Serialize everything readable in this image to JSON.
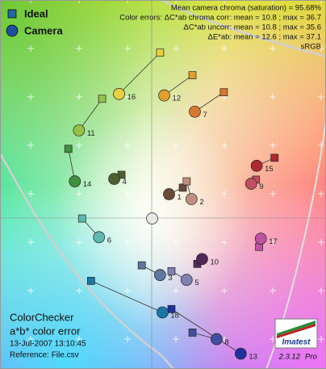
{
  "chart_data": {
    "type": "scatter",
    "title": "ColorChecker",
    "subtitle": "a*b* color error",
    "date": "13-Jul-2007 13:10:45",
    "reference": "Reference: File.csv",
    "stats": [
      "Mean camera chroma (saturation) = 95.68%",
      "Color errors:  ΔC*ab chroma corr:  mean = 10.8 ;  max = 36.7",
      "ΔC*ab uncorr:  mean = 10.8 ;  max = 35.6",
      "ΔE*ab:  mean = 12.6 ;  max = 37.1",
      "sRGB"
    ],
    "software": {
      "brand": "Imatest",
      "version": "2.3.12",
      "edition": "Pro"
    },
    "labels": [
      "1",
      "2",
      "3",
      "4",
      "5",
      "6",
      "7",
      "8",
      "9",
      "10",
      "11",
      "12",
      "13",
      "14",
      "15",
      "16",
      "17",
      "18",
      null
    ],
    "patch_colors": [
      "#6b4a3a",
      "#c0907e",
      "#5e78a0",
      "#4e6030",
      "#8080b0",
      "#60b8b0",
      "#d87830",
      "#4050a0",
      "#c05060",
      "#502858",
      "#98c048",
      "#e0a030",
      "#2030a0",
      "#409040",
      "#b02830",
      "#e8d040",
      "#c050a0",
      "#1878a8",
      "#e8e8e8"
    ],
    "xlim": [
      -63,
      72
    ],
    "ylim": [
      -62,
      90
    ],
    "series": [
      {
        "name": "Ideal",
        "marker": "square",
        "color": "#1f6aa0",
        "x": [
          12.7,
          14.3,
          -4.3,
          -12.7,
          8,
          -29,
          29.7,
          16.7,
          43,
          18.7,
          -20.7,
          16.7,
          8,
          -34.7,
          50.7,
          3.3,
          44.3,
          -25.3,
          0
        ],
        "values": [
          12.7,
          15.3,
          -19.3,
          18,
          -21.7,
          0,
          52,
          -47,
          16,
          -18.7,
          49.3,
          59,
          -37.3,
          28.7,
          25,
          68.3,
          -11.7,
          -25.7,
          0
        ]
      },
      {
        "name": "Camera",
        "marker": "circle",
        "color": "#1f4fa0",
        "x": [
          7,
          16.3,
          3.3,
          -15.7,
          14.3,
          -22,
          17.7,
          26.7,
          41,
          20.7,
          -30.3,
          5,
          36.7,
          -32,
          43.3,
          -13.7,
          45,
          4.3,
          0
        ],
        "values": [
          10,
          8,
          -23.3,
          16.3,
          -25.3,
          -7.7,
          44,
          -49.7,
          14.3,
          -16.7,
          36.3,
          50.7,
          -55.7,
          15.3,
          21.7,
          51.3,
          -8.3,
          -38.7,
          0
        ]
      }
    ]
  }
}
